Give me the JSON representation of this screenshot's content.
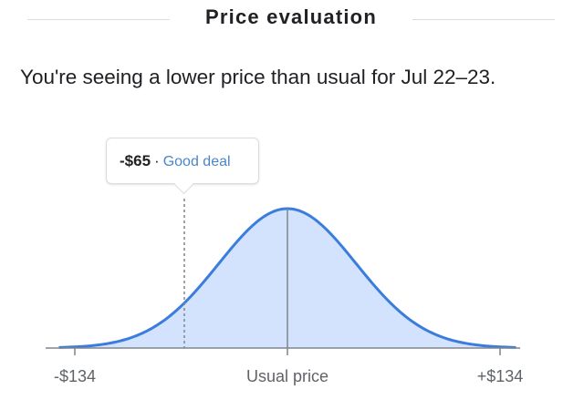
{
  "header": {
    "title": "Price evaluation"
  },
  "summary": {
    "text": "You're seeing a lower price than usual for Jul 22–23."
  },
  "tooltip": {
    "delta": "-$65",
    "separator": "·",
    "label": "Good deal"
  },
  "colors": {
    "curve": "#3b7ddd",
    "fill": "#d3e3fd",
    "accent_text": "#4a86c8"
  },
  "chart_data": {
    "type": "area",
    "x_tick_labels": [
      "-$134",
      "Usual price",
      "+$134"
    ],
    "x_range": [
      -134,
      134
    ],
    "usual_price_offset": 0,
    "current_price_offset": -65,
    "curve": "normal distribution centered on usual price",
    "grid": false
  }
}
